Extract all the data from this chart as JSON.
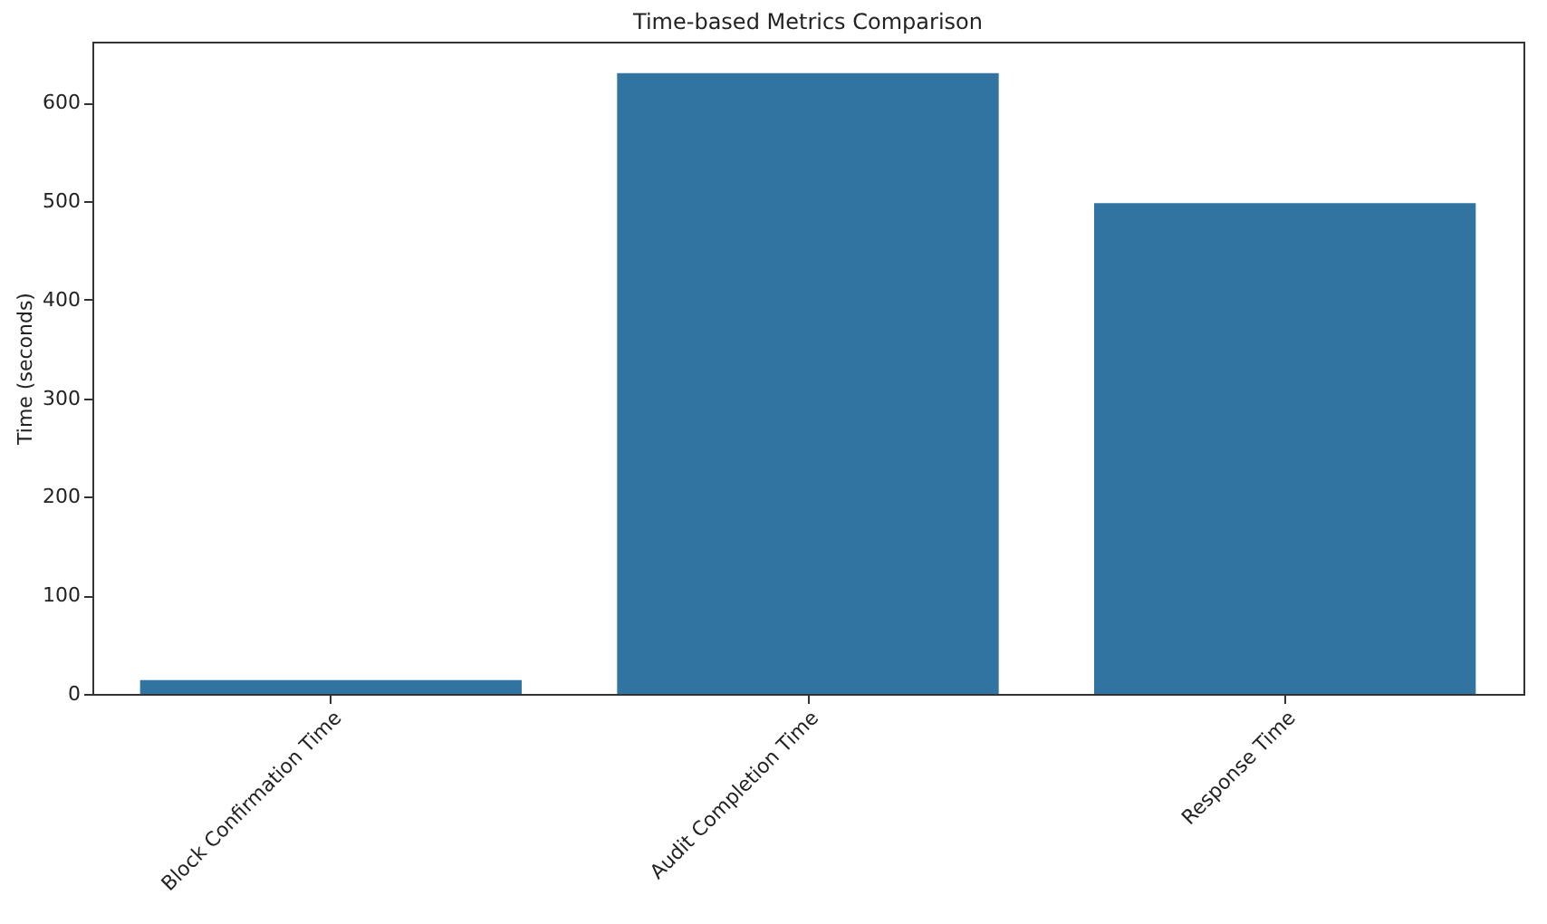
{
  "chart_data": {
    "type": "bar",
    "title": "Time-based Metrics Comparison",
    "ylabel": "Time (seconds)",
    "categories": [
      "Block Confirmation Time",
      "Audit Completion Time",
      "Response Time"
    ],
    "values": [
      14,
      630,
      498
    ],
    "color": "#3274a1",
    "ylim": [
      0,
      662
    ],
    "yticks": [
      0,
      100,
      200,
      300,
      400,
      500,
      600
    ],
    "grid": false
  }
}
